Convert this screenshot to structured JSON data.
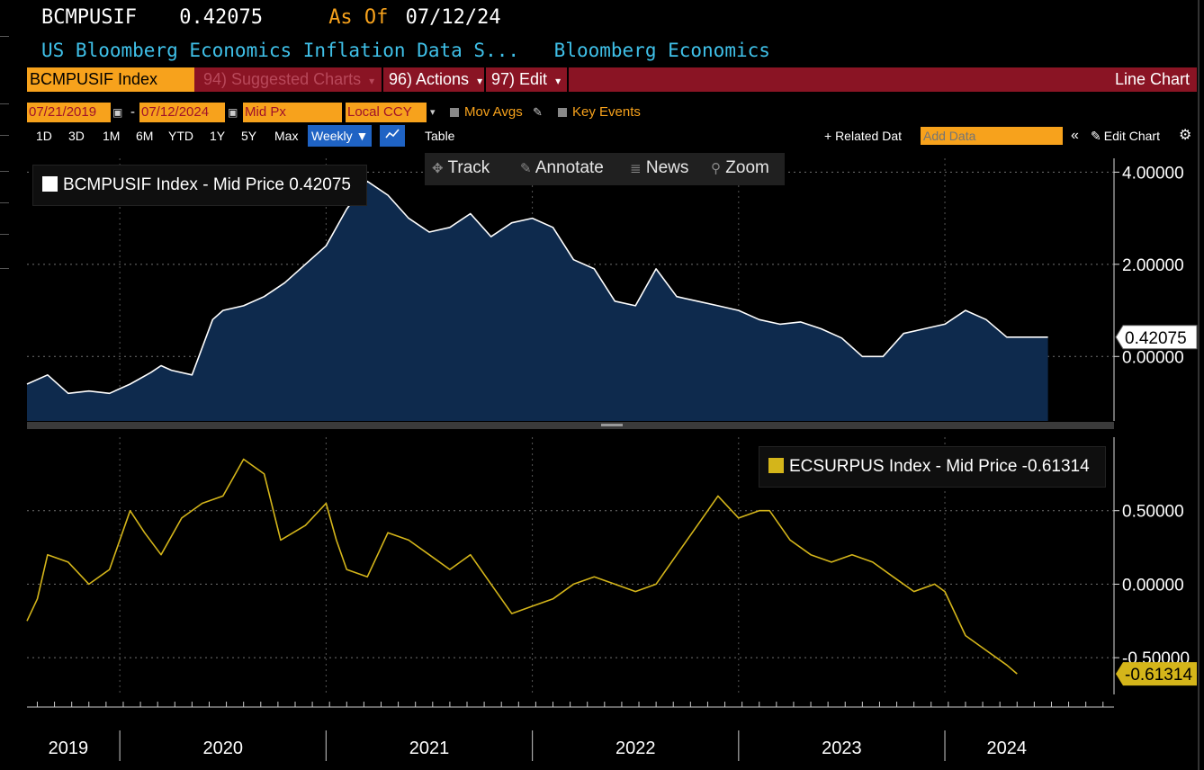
{
  "header": {
    "ticker": "BCMPUSIF",
    "last": "0.42075",
    "as_of_label": "As Of",
    "as_of_date": "07/12/24",
    "description": "US Bloomberg Economics Inflation Data S...",
    "source": "Bloomberg Economics"
  },
  "toolbar": {
    "security": "BCMPUSIF Index",
    "suggested": "94) Suggested Charts",
    "actions": "96) Actions",
    "edit": "97) Edit",
    "chart_type": "Line Chart",
    "caret": "▾"
  },
  "settings": {
    "start_date": "07/21/2019",
    "dash": "-",
    "end_date": "07/12/2024",
    "price_field": "Mid Px",
    "currency": "Local CCY",
    "mov_avgs": "Mov Avgs",
    "key_events": "Key Events"
  },
  "periods": [
    "1D",
    "3D",
    "1M",
    "6M",
    "YTD",
    "1Y",
    "5Y",
    "Max"
  ],
  "frequency": "Weekly ▼",
  "table_label": "Table",
  "related_data": "+ Related Dat",
  "add_data_placeholder": "Add Data",
  "edit_chart": "Edit Chart",
  "tools": {
    "track": "Track",
    "annotate": "Annotate",
    "news": "News",
    "zoom": "Zoom"
  },
  "icons": {
    "calendar": "calendar-icon",
    "pencil": "pencil-icon",
    "line-chart": "line-chart-icon",
    "collapse": "double-chevron-left-icon",
    "gear": "gear-icon"
  },
  "colors": {
    "orange": "#f7a21c",
    "maroon": "#8a1424",
    "cyan": "#3fc0e8",
    "area_fill": "#0e2a4d",
    "yellow": "#d4b51a"
  },
  "chart_data": [
    {
      "type": "area",
      "legend": "BCMPUSIF Index - Mid Price 0.42075",
      "last_label": "0.42075",
      "yticks": [
        4,
        2,
        0
      ],
      "ytick_labels": [
        "4.00000",
        "2.00000",
        "0.00000"
      ],
      "ylim": [
        -1.4,
        4.3
      ],
      "x": [
        2019.55,
        2019.65,
        2019.75,
        2019.85,
        2019.95,
        2020.05,
        2020.15,
        2020.2,
        2020.25,
        2020.35,
        2020.45,
        2020.5,
        2020.6,
        2020.7,
        2020.8,
        2020.9,
        2021.0,
        2021.1,
        2021.2,
        2021.3,
        2021.4,
        2021.5,
        2021.6,
        2021.7,
        2021.8,
        2021.9,
        2022.0,
        2022.1,
        2022.2,
        2022.3,
        2022.4,
        2022.5,
        2022.6,
        2022.7,
        2022.8,
        2022.9,
        2023.0,
        2023.1,
        2023.2,
        2023.3,
        2023.4,
        2023.5,
        2023.6,
        2023.7,
        2023.8,
        2023.9,
        2024.0,
        2024.1,
        2024.2,
        2024.3,
        2024.4,
        2024.5
      ],
      "values": [
        -0.6,
        -0.4,
        -0.8,
        -0.75,
        -0.8,
        -0.6,
        -0.35,
        -0.2,
        -0.3,
        -0.4,
        0.8,
        1.0,
        1.1,
        1.3,
        1.6,
        2.0,
        2.4,
        3.2,
        3.8,
        3.5,
        3.0,
        2.7,
        2.8,
        3.1,
        2.6,
        2.9,
        3.0,
        2.8,
        2.1,
        1.9,
        1.2,
        1.1,
        1.9,
        1.3,
        1.2,
        1.1,
        1.0,
        0.8,
        0.7,
        0.75,
        0.6,
        0.4,
        0.0,
        0.0,
        0.5,
        0.6,
        0.7,
        1.0,
        0.8,
        0.42,
        0.42,
        0.42
      ]
    },
    {
      "type": "line",
      "legend": "ECSURPUS Index - Mid Price -0.61314",
      "last_label": "-0.61314",
      "yticks": [
        0.5,
        0,
        -0.5
      ],
      "ytick_labels": [
        "0.50000",
        "0.00000",
        "-0.50000"
      ],
      "ylim": [
        -0.75,
        1.0
      ],
      "x": [
        2019.55,
        2019.6,
        2019.65,
        2019.75,
        2019.85,
        2019.95,
        2020.05,
        2020.12,
        2020.2,
        2020.3,
        2020.4,
        2020.5,
        2020.6,
        2020.7,
        2020.78,
        2020.9,
        2021.0,
        2021.05,
        2021.1,
        2021.2,
        2021.3,
        2021.4,
        2021.5,
        2021.6,
        2021.7,
        2021.8,
        2021.9,
        2022.0,
        2022.1,
        2022.2,
        2022.3,
        2022.4,
        2022.5,
        2022.6,
        2022.7,
        2022.8,
        2022.9,
        2023.0,
        2023.1,
        2023.15,
        2023.25,
        2023.35,
        2023.45,
        2023.55,
        2023.65,
        2023.75,
        2023.85,
        2023.95,
        2024.0,
        2024.1,
        2024.2,
        2024.3,
        2024.35
      ],
      "values": [
        -0.25,
        -0.1,
        0.2,
        0.15,
        0.0,
        0.1,
        0.5,
        0.35,
        0.2,
        0.45,
        0.55,
        0.6,
        0.85,
        0.75,
        0.3,
        0.4,
        0.55,
        0.3,
        0.1,
        0.05,
        0.35,
        0.3,
        0.2,
        0.1,
        0.2,
        0.0,
        -0.2,
        -0.15,
        -0.1,
        0.0,
        0.05,
        0.0,
        -0.05,
        0.0,
        0.2,
        0.4,
        0.6,
        0.45,
        0.5,
        0.5,
        0.3,
        0.2,
        0.15,
        0.2,
        0.15,
        0.05,
        -0.05,
        0.0,
        -0.05,
        -0.35,
        -0.45,
        -0.55,
        -0.61
      ]
    }
  ],
  "xaxis": {
    "years": [
      "2019",
      "2020",
      "2021",
      "2022",
      "2023",
      "2024"
    ],
    "year_centers": [
      2019.75,
      2020.5,
      2021.5,
      2022.5,
      2023.5,
      2024.3
    ],
    "year_bounds": [
      2020.0,
      2021.0,
      2022.0,
      2023.0,
      2024.0
    ]
  }
}
